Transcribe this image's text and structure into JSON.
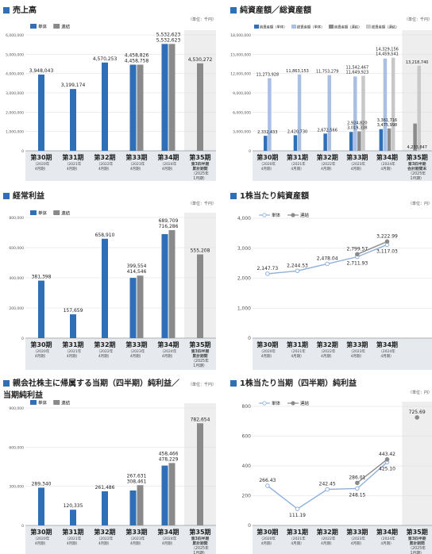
{
  "unit": "（単位：千円）",
  "unit_yen": "（単位：円）",
  "legend_single": "単体",
  "legend_consol": "連結",
  "colors": {
    "single": "#2f6fb5",
    "consol": "#8a8a8a",
    "light_single": "#a9bfe3",
    "light_consol": "#c8c8c8",
    "band": "#e6eaee",
    "band_last": "#eeeeee",
    "line_single": "#8fb0dc"
  },
  "periods": [
    {
      "num": "第30期",
      "date": "（2020年",
      "month": "4月期）"
    },
    {
      "num": "第31期",
      "date": "（2021年",
      "month": "4月期）"
    },
    {
      "num": "第32期",
      "date": "（2022年",
      "month": "4月期）"
    },
    {
      "num": "第33期",
      "date": "（2023年",
      "month": "4月期）"
    },
    {
      "num": "第34期",
      "date": "（2024年",
      "month": "4月期）"
    }
  ],
  "period35": {
    "num": "第35期",
    "lines_cumulative": [
      "第3四半期",
      "累計期間",
      "（2025年",
      "1月期）"
    ],
    "lines_end": [
      "第3四半期",
      "会計期間末",
      "（2025年",
      "1月期）"
    ]
  },
  "chart_data": [
    {
      "id": "sales",
      "type": "bar",
      "title": "売上高",
      "ylim": [
        0,
        6000000
      ],
      "yticks": [
        "0",
        "1,000,000",
        "2,000,000",
        "3,000,000",
        "4,000,000",
        "5,000,000",
        "6,000,000"
      ],
      "series": [
        {
          "name": "単体",
          "values": [
            3948043,
            3199174,
            4570253,
            4458826,
            5532623,
            null
          ],
          "labels": [
            "3,948,043",
            "3,199,174",
            "4,570,253",
            "4,458,826",
            "5,532,623",
            ""
          ]
        },
        {
          "name": "連結",
          "values": [
            null,
            null,
            null,
            4458758,
            5532623,
            4530272
          ],
          "labels": [
            "",
            "",
            "",
            "4,458,758",
            "5,532,623",
            "4,530,272"
          ]
        }
      ]
    },
    {
      "id": "assets",
      "type": "bar",
      "title": "純資産額／総資産額",
      "ylim": [
        0,
        18000000
      ],
      "yticks": [
        "0",
        "3,000,000",
        "6,000,000",
        "9,000,000",
        "12,000,000",
        "15,000,000",
        "18,000,000"
      ],
      "legend": [
        "純資産額（単体）",
        "総資産額（単体）",
        "純資産額（連結）",
        "総資産額（連結）"
      ],
      "net_single": [
        2332433,
        2420730,
        2672566,
        2924820,
        3361716,
        null
      ],
      "net_single_labels": [
        "2,332,433",
        "2,420,730",
        "2,672,566",
        "2,924,820",
        "3,361,716",
        ""
      ],
      "total_single": [
        11273928,
        11863153,
        11753279,
        11542467,
        14329156,
        null
      ],
      "total_single_labels": [
        "11,273,928",
        "11,863,153",
        "11,753,279",
        "11,542,467",
        "14,329,156",
        ""
      ],
      "net_consol": [
        null,
        null,
        null,
        3019338,
        3475998,
        4233847
      ],
      "net_consol_labels": [
        "",
        "",
        "",
        "3,019,338",
        "3,475,998",
        "4,233,847"
      ],
      "total_consol": [
        null,
        null,
        null,
        11649923,
        14459541,
        13218740
      ],
      "total_consol_labels": [
        "",
        "",
        "",
        "11,649,923",
        "14,459,541",
        "13,218,740"
      ]
    },
    {
      "id": "ordinary",
      "type": "bar",
      "title": "経常利益",
      "ylim": [
        0,
        800000
      ],
      "yticks": [
        "0",
        "200,000",
        "400,000",
        "600,000",
        "800,000"
      ],
      "series": [
        {
          "name": "単体",
          "values": [
            381398,
            157659,
            658910,
            399554,
            689709,
            null
          ],
          "labels": [
            "381,398",
            "157,659",
            "658,910",
            "399,554",
            "689,709",
            ""
          ]
        },
        {
          "name": "連結",
          "values": [
            null,
            null,
            null,
            414546,
            716286,
            555208
          ],
          "labels": [
            "",
            "",
            "",
            "414,546",
            "716,286",
            "555,208"
          ]
        }
      ]
    },
    {
      "id": "bps",
      "type": "line",
      "title": "1株当たり純資産額",
      "ylim": [
        0,
        4000
      ],
      "yticks": [
        "0",
        "1,000",
        "2,000",
        "3,000",
        "4,000"
      ],
      "series": [
        {
          "name": "単体",
          "values": [
            2147.73,
            2244.53,
            2478.04,
            2711.93,
            3117.03
          ],
          "labels": [
            "2,147.73",
            "2,244.53",
            "2,478.04",
            "2,711.93",
            "3,117.03"
          ]
        },
        {
          "name": "連結",
          "values": [
            null,
            null,
            null,
            2799.57,
            3222.99
          ],
          "labels": [
            "",
            "",
            "",
            "2,799.57",
            "3,222.99"
          ]
        }
      ]
    },
    {
      "id": "netincome",
      "type": "bar",
      "title": "親会社株主に帰属する当期（四半期）純利益／",
      "title2": "当期純利益",
      "ylim": [
        0,
        900000
      ],
      "yticks": [
        "0",
        "300,000",
        "600,000",
        "900,000"
      ],
      "series": [
        {
          "name": "単体",
          "values": [
            289340,
            120335,
            261486,
            267631,
            458466,
            null
          ],
          "labels": [
            "289,340",
            "120,335",
            "261,486",
            "267,631",
            "458,466",
            ""
          ]
        },
        {
          "name": "連結",
          "values": [
            null,
            null,
            null,
            308461,
            478229,
            782654
          ],
          "labels": [
            "",
            "",
            "",
            "308,461",
            "478,229",
            "782,654"
          ]
        }
      ]
    },
    {
      "id": "eps",
      "type": "line",
      "title": "1株当たり当期（四半期）純利益",
      "ylim": [
        0,
        800
      ],
      "yticks": [
        "0",
        "200",
        "400",
        "600",
        "800"
      ],
      "series": [
        {
          "name": "単体",
          "values": [
            266.43,
            111.19,
            242.45,
            248.15,
            425.1,
            null
          ],
          "labels": [
            "266.43",
            "111.19",
            "242.45",
            "248.15",
            "425.10",
            ""
          ]
        },
        {
          "name": "連結",
          "values": [
            null,
            null,
            null,
            286.01,
            443.42,
            725.69
          ],
          "labels": [
            "",
            "",
            "",
            "286.01",
            "443.42",
            "725.69"
          ]
        }
      ]
    }
  ]
}
